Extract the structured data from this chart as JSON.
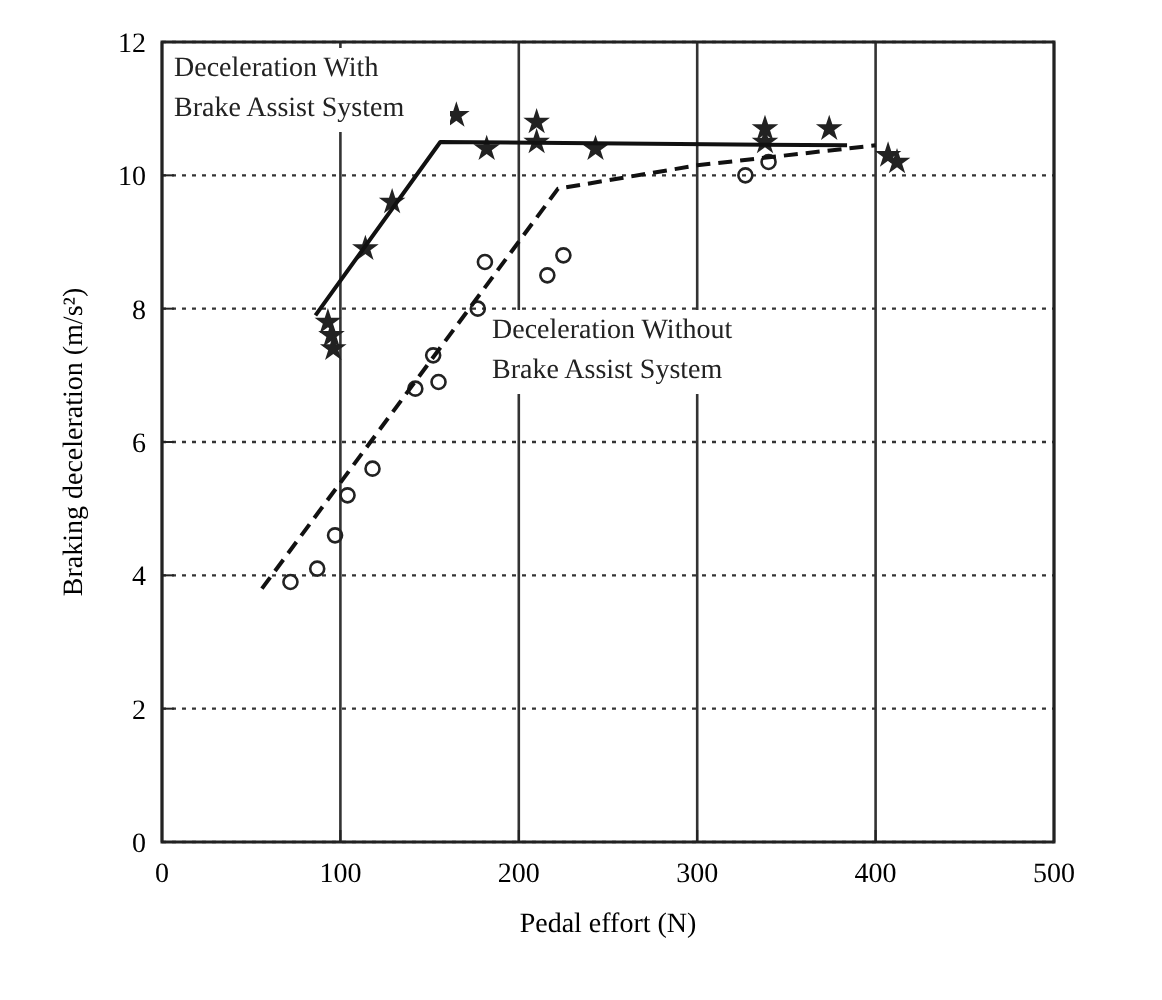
{
  "chart_data": {
    "type": "scatter",
    "xlabel": "Pedal effort (N)",
    "ylabel": "Braking deceleration (m/s²)",
    "xlim": [
      0,
      500
    ],
    "ylim": [
      0,
      12
    ],
    "xticks": [
      0,
      100,
      200,
      300,
      400,
      500
    ],
    "yticks": [
      0,
      2,
      4,
      6,
      8,
      10,
      12
    ],
    "grid": true,
    "series": [
      {
        "marker": "star",
        "color": "#222222",
        "x": [
          93,
          95,
          96,
          114,
          129,
          165,
          182,
          210,
          210,
          243,
          338,
          338,
          374,
          407,
          412
        ],
        "values": [
          7.8,
          7.6,
          7.4,
          8.9,
          9.6,
          10.9,
          10.4,
          10.8,
          10.5,
          10.4,
          10.7,
          10.5,
          10.7,
          10.3,
          10.2
        ]
      },
      {
        "marker": "circle",
        "color": "#222222",
        "x": [
          72,
          87,
          97,
          104,
          118,
          142,
          152,
          155,
          177,
          181,
          216,
          225,
          327,
          340
        ],
        "values": [
          3.9,
          4.1,
          4.6,
          5.2,
          5.6,
          6.8,
          7.3,
          6.9,
          8.0,
          8.7,
          8.5,
          8.8,
          10.0,
          10.2
        ]
      },
      {
        "type": "line",
        "line_style": "solid",
        "marker": "none",
        "color": "#111111",
        "x": [
          86,
          156,
          384
        ],
        "values": [
          7.9,
          10.5,
          10.45
        ]
      },
      {
        "type": "line",
        "line_style": "dashed",
        "marker": "none",
        "color": "#111111",
        "x": [
          56,
          222,
          300,
          400
        ],
        "values": [
          3.8,
          9.8,
          10.15,
          10.45
        ]
      }
    ],
    "annotations": [
      "Deceleration With Brake Assist System",
      "Deceleration Without Brake Assist System"
    ]
  }
}
